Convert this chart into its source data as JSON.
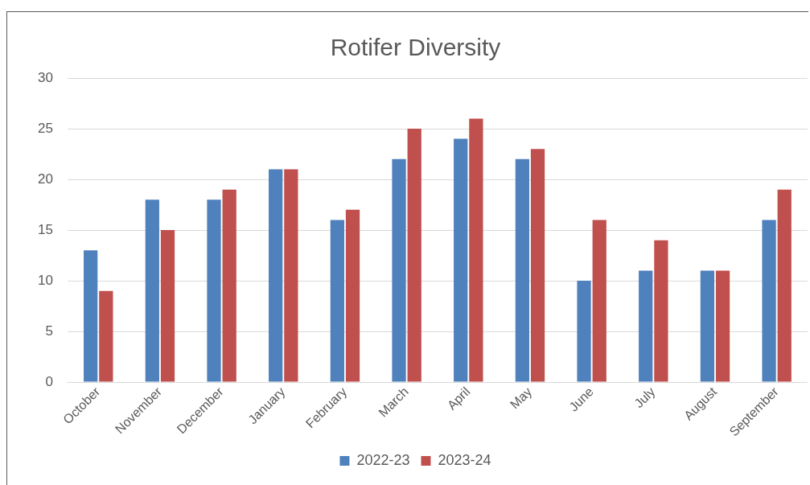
{
  "chart_data": {
    "type": "bar",
    "title": "Rotifer Diversity",
    "categories": [
      "October",
      "November",
      "December",
      "January",
      "February",
      "March",
      "April",
      "May",
      "June",
      "July",
      "August",
      "September"
    ],
    "series": [
      {
        "name": "2022-23",
        "color": "#4f81bd",
        "values": [
          13,
          18,
          18,
          21,
          16,
          22,
          24,
          22,
          10,
          11,
          11,
          16
        ]
      },
      {
        "name": "2023-24",
        "color": "#c0504d",
        "values": [
          9,
          15,
          19,
          21,
          17,
          25,
          26,
          23,
          16,
          14,
          11,
          19
        ]
      }
    ],
    "ylim": [
      0,
      30
    ],
    "yticks": [
      0,
      5,
      10,
      15,
      20,
      25,
      30
    ],
    "grid": "y",
    "legend": "bottom"
  }
}
